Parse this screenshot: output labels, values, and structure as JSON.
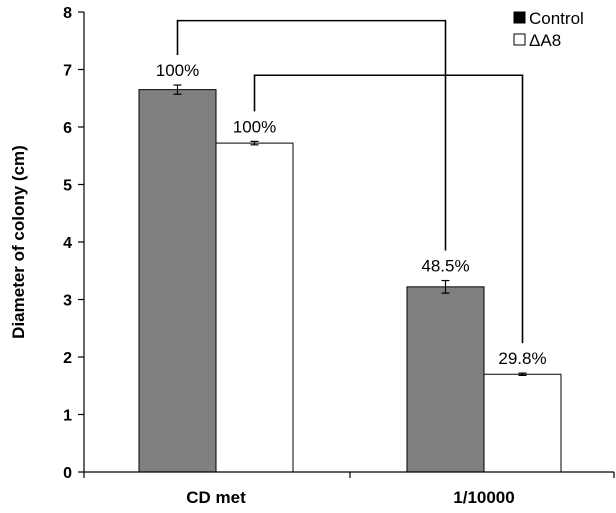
{
  "chart_data": {
    "type": "bar",
    "title": "",
    "xlabel": "",
    "ylabel": "Diameter of colony (cm)",
    "ylim": [
      0,
      8
    ],
    "yticks": [
      "0",
      "1",
      "2",
      "3",
      "4",
      "5",
      "6",
      "7",
      "8"
    ],
    "categories": [
      "CD met",
      "1/10000"
    ],
    "legend_position": "top-right",
    "series": [
      {
        "name": "Control",
        "color": "#808080",
        "legend_marker_color": "#000000",
        "values": [
          6.65,
          3.22
        ],
        "errors": [
          0.08,
          0.11
        ],
        "labels": [
          "100%",
          "48.5%"
        ]
      },
      {
        "name": "ΔA8",
        "color": "#ffffff",
        "legend_marker_color": "#ffffff",
        "values": [
          5.72,
          1.7
        ],
        "errors": [
          0.03,
          0.02
        ],
        "labels": [
          "100%",
          "29.8%"
        ]
      }
    ],
    "brackets": [
      {
        "series": 0,
        "from_category": 0,
        "to_category": 1
      },
      {
        "series": 1,
        "from_category": 0,
        "to_category": 1
      }
    ],
    "grid": false
  }
}
